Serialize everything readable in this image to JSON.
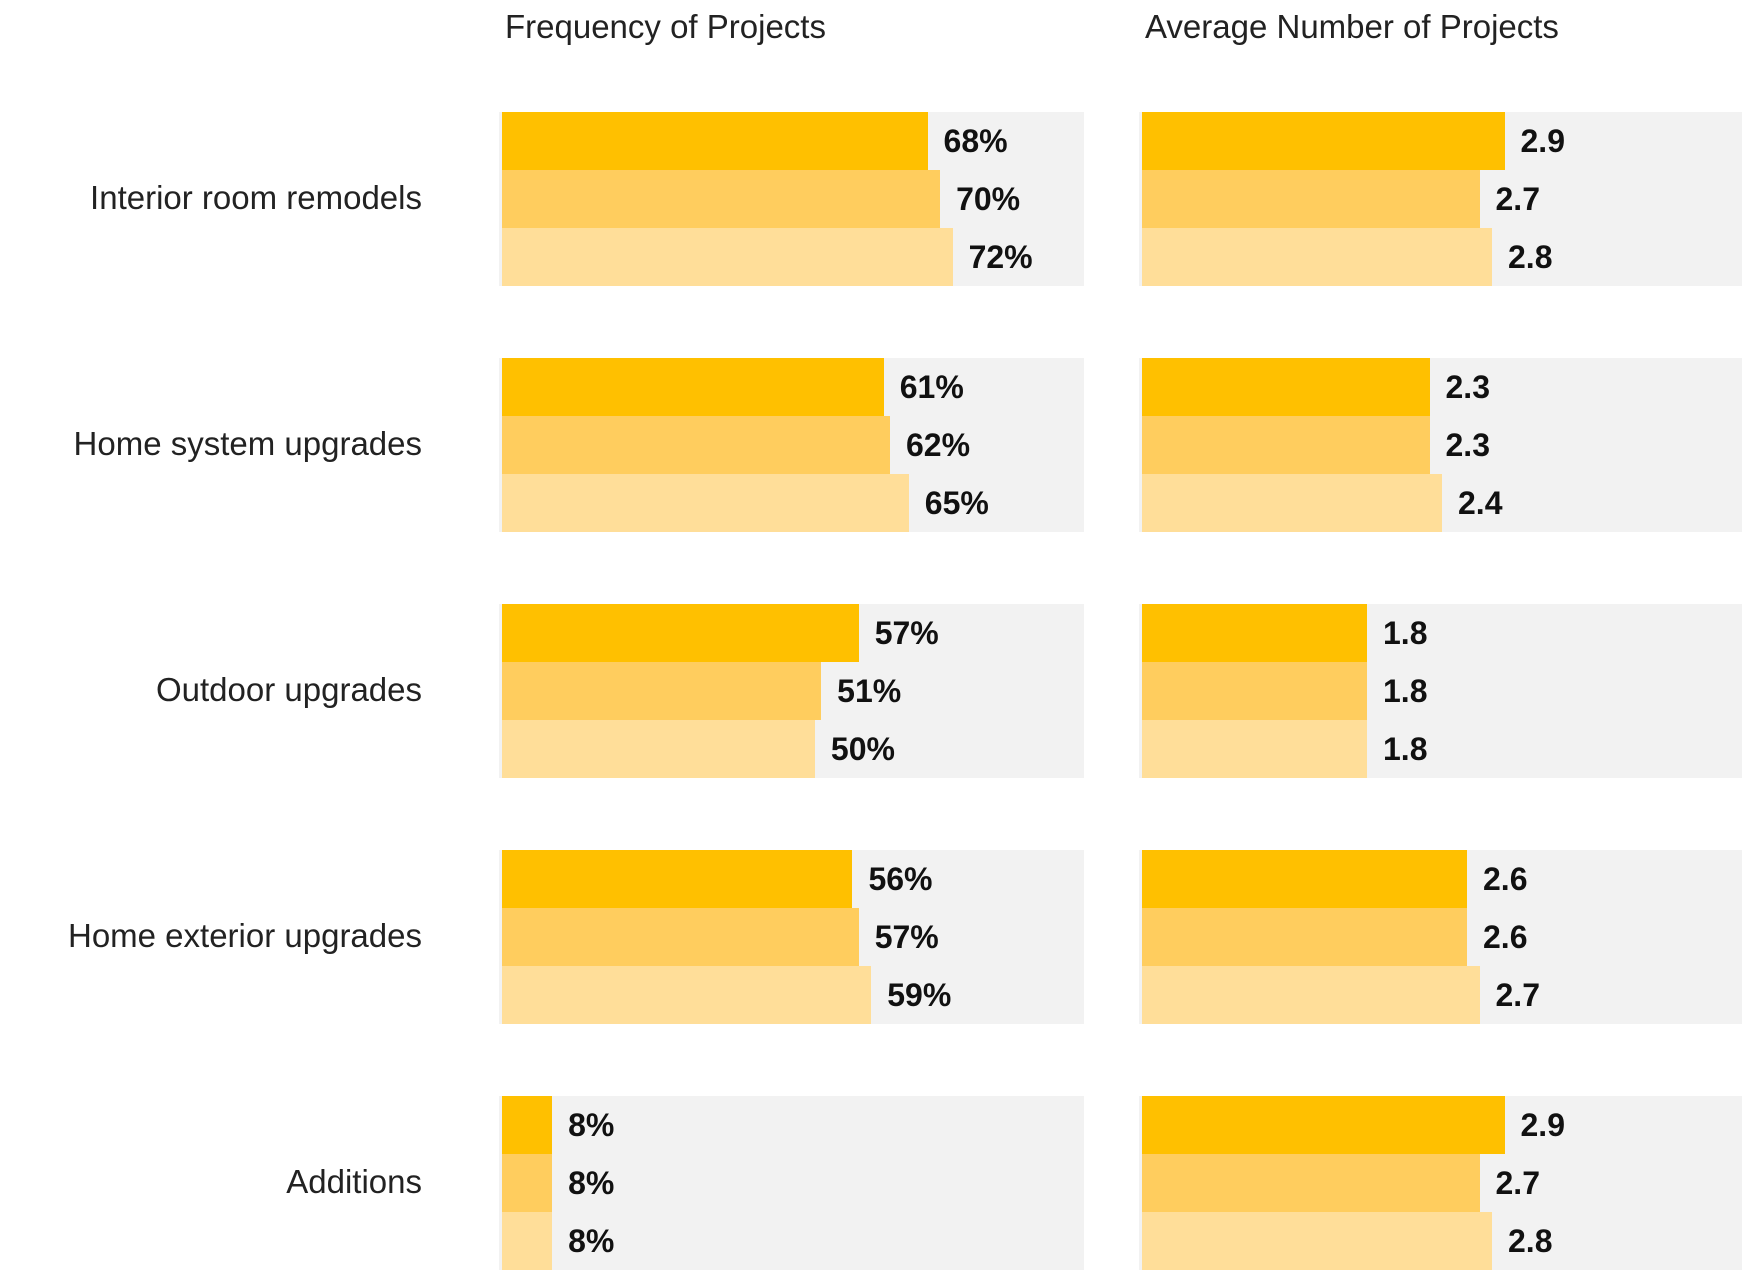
{
  "chart_data": [
    {
      "type": "bar",
      "orientation": "horizontal",
      "title": "Frequency of Projects",
      "categories": [
        "Interior room remodels",
        "Home system upgrades",
        "Outdoor upgrades",
        "Home exterior upgrades",
        "Additions"
      ],
      "xlim": [
        0,
        93
      ],
      "series": [
        {
          "color": "#ffc000",
          "values": [
            68,
            61,
            57,
            56,
            8
          ],
          "value_labels": [
            "68%",
            "61%",
            "57%",
            "56%",
            "8%"
          ]
        },
        {
          "color": "#ffcd5e",
          "values": [
            70,
            62,
            51,
            57,
            8
          ],
          "value_labels": [
            "70%",
            "62%",
            "51%",
            "57%",
            "8%"
          ]
        },
        {
          "color": "#ffde99",
          "values": [
            72,
            65,
            50,
            59,
            8
          ],
          "value_labels": [
            "72%",
            "65%",
            "50%",
            "59%",
            "8%"
          ]
        }
      ]
    },
    {
      "type": "bar",
      "orientation": "horizontal",
      "title": "Average Number of Projects",
      "xlim": [
        0,
        4.8
      ],
      "series": [
        {
          "color": "#ffc000",
          "values": [
            2.9,
            2.3,
            1.8,
            2.6,
            2.9
          ]
        },
        {
          "color": "#ffcd5e",
          "values": [
            2.7,
            2.3,
            1.8,
            2.6,
            2.7
          ]
        },
        {
          "color": "#ffde99",
          "values": [
            2.8,
            2.4,
            1.8,
            2.7,
            2.8
          ]
        }
      ]
    }
  ]
}
